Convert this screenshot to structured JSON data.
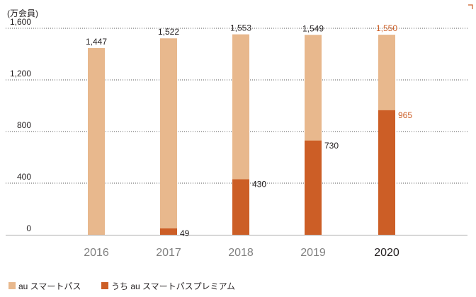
{
  "chart_data": {
    "type": "bar",
    "stacked": false,
    "unit_label": "(万会員)",
    "categories": [
      "2016",
      "2017",
      "2018",
      "2019",
      "2020"
    ],
    "highlight_category": "2020",
    "ylim": [
      0,
      1600
    ],
    "yticks": [
      "0",
      "400",
      "800",
      "1,200",
      "1,600"
    ],
    "ytick_values": [
      0,
      400,
      800,
      1200,
      1600
    ],
    "grid": "dotted horizontal",
    "legend_position": "bottom-left",
    "series": [
      {
        "name": "au スマートパス",
        "values": [
          1447,
          1522,
          1553,
          1549,
          1550
        ],
        "labels": [
          "1,447",
          "1,522",
          "1,553",
          "1,549",
          "1,550"
        ],
        "color": "#e8b88d"
      },
      {
        "name": "うち au スマートパスプレミアム",
        "values": [
          null,
          49,
          430,
          730,
          965
        ],
        "labels": [
          "",
          "49",
          "430",
          "730",
          "965"
        ],
        "color": "#cc5e26"
      }
    ],
    "colors": {
      "text": "#231f20",
      "axis_tick_text": "#808080",
      "highlight_label": "#cc5e26",
      "grid": "#555555",
      "axis_line": "#aaaaaa"
    }
  }
}
